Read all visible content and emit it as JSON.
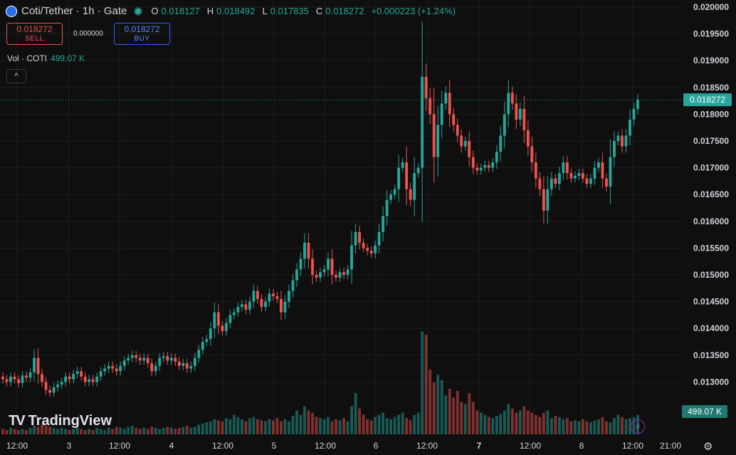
{
  "header": {
    "title": "Coti/Tether · 1h · Gate",
    "o_label": "O",
    "o": "0.018127",
    "h_label": "H",
    "h": "0.018492",
    "l_label": "L",
    "l": "0.017835",
    "c_label": "C",
    "c": "0.018272",
    "change": "+0.000223 (+1.24%)"
  },
  "trade": {
    "sell_price": "0.018272",
    "sell_label": "SELL",
    "spread": "0.000000",
    "buy_price": "0.018272",
    "buy_label": "BUY"
  },
  "volume": {
    "label": "Vol · COTI",
    "value": "499.07 K"
  },
  "collapse_glyph": "^",
  "branding": {
    "logo_mark": "TV",
    "name": "TradingView"
  },
  "colors": {
    "up": "#26a69a",
    "down": "#ef5350",
    "background": "#0f0f0f",
    "grid": "#1e1e1e"
  },
  "chart_data": {
    "type": "candlestick",
    "price_axis_ticks": [
      "0.020000",
      "0.019500",
      "0.019000",
      "0.018500",
      "0.018000",
      "0.017500",
      "0.017000",
      "0.016500",
      "0.016000",
      "0.015500",
      "0.015000",
      "0.014500",
      "0.014000",
      "0.013500",
      "0.013000"
    ],
    "ylim": [
      0.0125,
      0.0201
    ],
    "time_axis_ticks": [
      "12:00",
      "3",
      "12:00",
      "4",
      "12:00",
      "5",
      "12:00",
      "6",
      "12:00",
      "7",
      "12:00",
      "8",
      "12:00",
      "21:00"
    ],
    "current_price_label": "0.018272",
    "current_volume_label": "499.07 K",
    "closes": [
      0.01305,
      0.013,
      0.0131,
      0.01305,
      0.01298,
      0.01312,
      0.01308,
      0.01318,
      0.01345,
      0.01315,
      0.013,
      0.01285,
      0.0128,
      0.0129,
      0.01295,
      0.013,
      0.0131,
      0.01305,
      0.01315,
      0.0132,
      0.0131,
      0.013,
      0.01305,
      0.013,
      0.0131,
      0.0132,
      0.01325,
      0.0133,
      0.01325,
      0.0132,
      0.0133,
      0.0134,
      0.01345,
      0.0135,
      0.01345,
      0.0134,
      0.01345,
      0.01335,
      0.0132,
      0.0133,
      0.01345,
      0.01348,
      0.0134,
      0.01345,
      0.01338,
      0.0133,
      0.01335,
      0.01325,
      0.0133,
      0.01345,
      0.0136,
      0.01375,
      0.0138,
      0.014,
      0.0143,
      0.01405,
      0.01395,
      0.0141,
      0.01425,
      0.0143,
      0.0144,
      0.01445,
      0.01435,
      0.0145,
      0.0147,
      0.01455,
      0.0144,
      0.0145,
      0.01465,
      0.0146,
      0.01455,
      0.0143,
      0.0145,
      0.0147,
      0.0149,
      0.0151,
      0.0153,
      0.0156,
      0.0153,
      0.015,
      0.01495,
      0.01505,
      0.0151,
      0.0153,
      0.015,
      0.01495,
      0.01505,
      0.015,
      0.0151,
      0.01555,
      0.0158,
      0.0156,
      0.0155,
      0.01545,
      0.0154,
      0.01555,
      0.0158,
      0.0161,
      0.0164,
      0.0165,
      0.0166,
      0.017,
      0.0171,
      0.0166,
      0.0164,
      0.0169,
      0.017,
      0.0187,
      0.0183,
      0.018,
      0.0172,
      0.0178,
      0.0182,
      0.0184,
      0.018,
      0.0178,
      0.0176,
      0.0174,
      0.0175,
      0.0172,
      0.017,
      0.01695,
      0.017,
      0.01705,
      0.017,
      0.0171,
      0.0173,
      0.0176,
      0.018,
      0.0184,
      0.0182,
      0.0179,
      0.0181,
      0.0177,
      0.0174,
      0.0171,
      0.0168,
      0.0166,
      0.0162,
      0.0166,
      0.0168,
      0.0167,
      0.0169,
      0.0171,
      0.0169,
      0.0168,
      0.01685,
      0.0169,
      0.0168,
      0.0167,
      0.0168,
      0.017,
      0.0171,
      0.0168,
      0.01665,
      0.0172,
      0.0175,
      0.0176,
      0.0174,
      0.0176,
      0.0179,
      0.0181,
      0.01827
    ],
    "volumes": [
      0.05,
      0.04,
      0.06,
      0.05,
      0.04,
      0.05,
      0.04,
      0.06,
      0.08,
      0.07,
      0.09,
      0.08,
      0.07,
      0.06,
      0.05,
      0.06,
      0.05,
      0.04,
      0.05,
      0.06,
      0.05,
      0.04,
      0.05,
      0.04,
      0.06,
      0.05,
      0.04,
      0.06,
      0.05,
      0.07,
      0.06,
      0.05,
      0.07,
      0.08,
      0.06,
      0.05,
      0.06,
      0.05,
      0.07,
      0.06,
      0.05,
      0.06,
      0.07,
      0.06,
      0.05,
      0.06,
      0.07,
      0.08,
      0.06,
      0.07,
      0.09,
      0.1,
      0.11,
      0.12,
      0.14,
      0.13,
      0.12,
      0.15,
      0.14,
      0.18,
      0.16,
      0.14,
      0.12,
      0.15,
      0.16,
      0.14,
      0.13,
      0.12,
      0.14,
      0.13,
      0.15,
      0.12,
      0.14,
      0.12,
      0.17,
      0.22,
      0.18,
      0.26,
      0.22,
      0.2,
      0.16,
      0.15,
      0.14,
      0.16,
      0.12,
      0.14,
      0.13,
      0.15,
      0.12,
      0.26,
      0.38,
      0.24,
      0.18,
      0.14,
      0.13,
      0.16,
      0.18,
      0.2,
      0.15,
      0.14,
      0.16,
      0.18,
      0.2,
      0.15,
      0.13,
      0.18,
      0.2,
      0.95,
      0.92,
      0.6,
      0.48,
      0.55,
      0.5,
      0.36,
      0.42,
      0.34,
      0.4,
      0.3,
      0.28,
      0.38,
      0.3,
      0.22,
      0.2,
      0.18,
      0.16,
      0.15,
      0.17,
      0.19,
      0.22,
      0.28,
      0.24,
      0.2,
      0.22,
      0.26,
      0.22,
      0.2,
      0.18,
      0.16,
      0.2,
      0.22,
      0.15,
      0.17,
      0.16,
      0.14,
      0.15,
      0.12,
      0.13,
      0.12,
      0.14,
      0.12,
      0.11,
      0.13,
      0.14,
      0.16,
      0.12,
      0.11,
      0.15,
      0.18,
      0.16,
      0.14,
      0.15,
      0.16,
      0.18,
      0.3
    ]
  }
}
